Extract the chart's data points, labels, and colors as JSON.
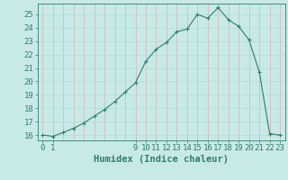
{
  "x": [
    0,
    1,
    2,
    3,
    4,
    5,
    6,
    7,
    8,
    9,
    10,
    11,
    12,
    13,
    14,
    15,
    16,
    17,
    18,
    19,
    20,
    21,
    22,
    23
  ],
  "y": [
    16.0,
    15.9,
    16.2,
    16.5,
    16.9,
    17.4,
    17.9,
    18.5,
    19.2,
    19.9,
    21.5,
    22.4,
    22.9,
    23.7,
    23.9,
    25.0,
    24.7,
    25.5,
    24.6,
    24.1,
    23.1,
    20.7,
    16.1,
    16.0
  ],
  "xlim": [
    -0.5,
    23.5
  ],
  "ylim": [
    15.6,
    25.8
  ],
  "xtick_positions": [
    0,
    1,
    9,
    10,
    11,
    12,
    13,
    14,
    15,
    16,
    17,
    18,
    19,
    20,
    21,
    22,
    23
  ],
  "ytick_positions": [
    16,
    17,
    18,
    19,
    20,
    21,
    22,
    23,
    24,
    25
  ],
  "xlabel": "Humidex (Indice chaleur)",
  "line_color": "#2e7d6e",
  "bg_color": "#c8eae7",
  "grid_v_color": "#d9b0b0",
  "grid_h_color": "#b0d9d4",
  "xlabel_fontsize": 7.5,
  "tick_fontsize": 6.5
}
